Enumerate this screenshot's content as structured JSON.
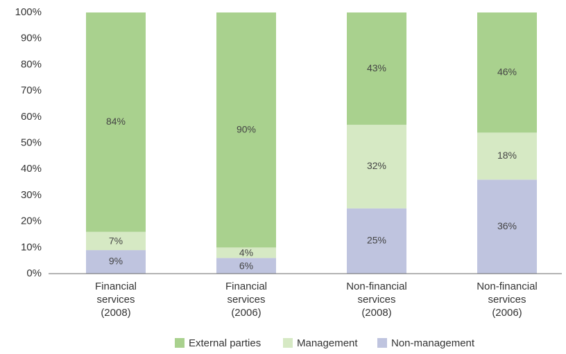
{
  "chart_data": {
    "type": "stacked_bar",
    "categories": [
      "Financial services (2008)",
      "Financial services (2006)",
      "Non-financial services (2008)",
      "Non-financial services (2006)"
    ],
    "series": [
      {
        "name": "External parties",
        "color": "#a9d18e",
        "values": [
          84,
          90,
          43,
          46
        ],
        "value_labels": [
          "84%",
          "90%",
          "43%",
          "46%"
        ]
      },
      {
        "name": "Management",
        "color": "#d6e9c4",
        "values": [
          7,
          4,
          32,
          18
        ],
        "value_labels": [
          "7%",
          "4%",
          "32%",
          "18%"
        ]
      },
      {
        "name": "Non-management",
        "color": "#bfc4df",
        "values": [
          9,
          6,
          25,
          36
        ],
        "value_labels": [
          "9%",
          "6%",
          "25%",
          "36%"
        ]
      }
    ],
    "ylim": [
      0,
      100
    ],
    "yticks": [
      {
        "value": 0,
        "label": "0%"
      },
      {
        "value": 10,
        "label": "10%"
      },
      {
        "value": 20,
        "label": "20%"
      },
      {
        "value": 30,
        "label": "30%"
      },
      {
        "value": 40,
        "label": "40%"
      },
      {
        "value": 50,
        "label": "50%"
      },
      {
        "value": 60,
        "label": "60%"
      },
      {
        "value": 70,
        "label": "70%"
      },
      {
        "value": 80,
        "label": "80%"
      },
      {
        "value": 90,
        "label": "90%"
      },
      {
        "value": 100,
        "label": "100%"
      }
    ],
    "legend": "bottom",
    "grid": false
  }
}
